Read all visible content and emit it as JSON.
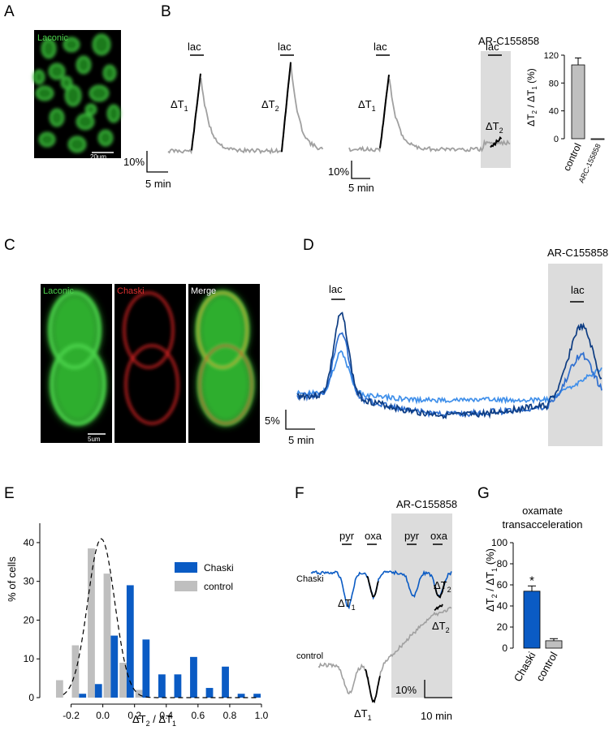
{
  "panels": {
    "A": "A",
    "B": "B",
    "C": "C",
    "D": "D",
    "E": "E",
    "F": "F",
    "G": "G"
  },
  "images": {
    "laconic_cells": "Laconic",
    "scalebar_A": "20um",
    "c_laconic": "Laconic",
    "c_chaski": "Chaski",
    "c_merge": "Merge",
    "scalebar_C": "5um"
  },
  "labels": {
    "lac": "lac",
    "ar": "AR-C155858",
    "pyr": "pyr",
    "oxa": "oxa",
    "chaski": "Chaski",
    "control": "control",
    "dT1": "ΔT",
    "dT2": "ΔT",
    "sub1": "1",
    "sub2": "2"
  },
  "scalebars": {
    "B1_y": "10%",
    "B1_x": "5 min",
    "B2_y": "10%",
    "B2_x": "5 min",
    "D_y": "5%",
    "D_x": "5 min",
    "F_y": "10%",
    "F_x": "10 min"
  },
  "colors": {
    "trace_gray": "#a0a0a0",
    "trace_black": "#000000",
    "blue": "#0a5bc4",
    "navy": "#0d3c82",
    "mid_blue": "#2f6fd0",
    "light_blue": "#3f8fea",
    "bar_gray": "#bfbfbf",
    "shade": "#dcdcdc",
    "laconic": "#3fc43f",
    "chaski": "#d42020"
  },
  "chart_data": [
    {
      "panel": "B-inset",
      "type": "bar",
      "categories": [
        "control",
        "ARC-155858"
      ],
      "values": [
        106,
        0
      ],
      "errors": [
        10,
        0
      ],
      "ylabel": "ΔT2 / ΔT1 (%)",
      "ylim": [
        0,
        120
      ],
      "yticks": [
        0,
        40,
        80,
        120
      ]
    },
    {
      "panel": "E",
      "type": "bar",
      "x": [
        -0.25,
        -0.15,
        -0.05,
        0.05,
        0.15,
        0.25,
        0.35,
        0.45,
        0.55,
        0.65,
        0.75,
        0.85,
        0.95
      ],
      "series": [
        {
          "name": "Chaski",
          "values": [
            0,
            1,
            3.5,
            16,
            29,
            15,
            6,
            6,
            10.5,
            2.5,
            8,
            1,
            1
          ]
        },
        {
          "name": "control",
          "values": [
            4.5,
            13.5,
            38.5,
            32,
            9,
            2,
            0,
            0,
            0,
            0,
            0,
            0,
            0
          ]
        }
      ],
      "fit": "gaussian",
      "xlabel": "ΔT2 / ΔT1",
      "ylabel": "% of cells",
      "xticks": [
        "-0.2",
        "0.0",
        "0.2",
        "0.4",
        "0.6",
        "0.8",
        "1.0"
      ],
      "yticks": [
        "0",
        "10",
        "20",
        "30",
        "40"
      ],
      "xlim": [
        -0.3,
        1.0
      ],
      "ylim": [
        0,
        45
      ],
      "legend": "top-right"
    },
    {
      "panel": "G",
      "type": "bar",
      "title": "oxamate transacceleration",
      "title_lines": [
        "oxamate",
        "transacceleration"
      ],
      "categories": [
        "Chaski",
        "control"
      ],
      "values": [
        54,
        7
      ],
      "errors": [
        5,
        2
      ],
      "significance": [
        "*",
        ""
      ],
      "ylabel": "ΔT2 / ΔT1 (%)",
      "ylim": [
        0,
        100
      ],
      "yticks": [
        "0",
        "20",
        "40",
        "60",
        "80",
        "100"
      ]
    }
  ]
}
